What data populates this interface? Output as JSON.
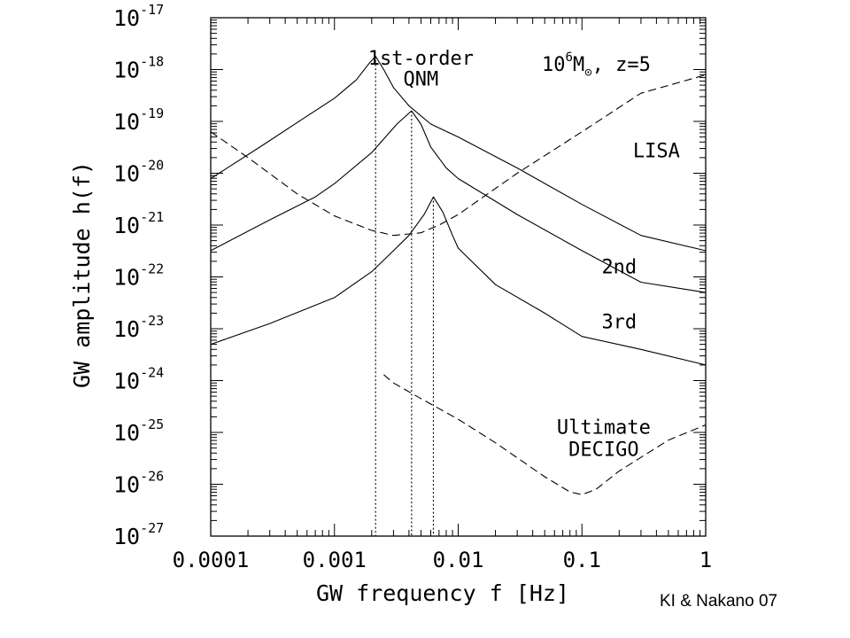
{
  "chart_data": {
    "type": "line",
    "xlabel": "GW frequency f [Hz]",
    "ylabel": "GW amplitude h(f)",
    "xscale": "log",
    "yscale": "log",
    "xlim": [
      0.0001,
      1
    ],
    "ylim": [
      1e-27,
      1e-17
    ],
    "x_ticks": [
      {
        "value": 0.0001,
        "label": "0.0001"
      },
      {
        "value": 0.001,
        "label": "0.001"
      },
      {
        "value": 0.01,
        "label": "0.01"
      },
      {
        "value": 0.1,
        "label": "0.1"
      },
      {
        "value": 1,
        "label": "1"
      }
    ],
    "y_ticks": [
      {
        "value": 1e-17,
        "exp": "-17"
      },
      {
        "value": 1e-18,
        "exp": "-18"
      },
      {
        "value": 1e-19,
        "exp": "-19"
      },
      {
        "value": 1e-20,
        "exp": "-20"
      },
      {
        "value": 1e-21,
        "exp": "-21"
      },
      {
        "value": 1e-22,
        "exp": "-22"
      },
      {
        "value": 1e-23,
        "exp": "-23"
      },
      {
        "value": 1e-24,
        "exp": "-24"
      },
      {
        "value": 1e-25,
        "exp": "-25"
      },
      {
        "value": 1e-26,
        "exp": "-26"
      },
      {
        "value": 1e-27,
        "exp": "-27"
      }
    ],
    "tick_base": "10",
    "series": [
      {
        "style": "solid",
        "points": [
          [
            0.0001,
            7.9e-21
          ],
          [
            0.00025,
            3.2e-20
          ],
          [
            0.0006,
            1.26e-19
          ],
          [
            0.001,
            2.8e-19
          ],
          [
            0.0015,
            6.3e-19
          ],
          [
            0.0019,
            1.3e-18
          ],
          [
            0.00215,
            1.8e-18
          ],
          [
            0.0025,
            1e-18
          ],
          [
            0.003,
            4.5e-19
          ],
          [
            0.004,
            2e-19
          ],
          [
            0.006,
            8.9e-20
          ],
          [
            0.01,
            5e-20
          ],
          [
            0.03,
            1.26e-20
          ],
          [
            0.1,
            2.5e-21
          ],
          [
            0.3,
            6.3e-22
          ],
          [
            1,
            3.2e-22
          ]
        ]
      },
      {
        "style": "solid",
        "points": [
          [
            0.0001,
            3.2e-22
          ],
          [
            0.0003,
            1.26e-21
          ],
          [
            0.0007,
            3.5e-21
          ],
          [
            0.001,
            6.3e-21
          ],
          [
            0.002,
            2.5e-20
          ],
          [
            0.0032,
            8.9e-20
          ],
          [
            0.0042,
            1.6e-19
          ],
          [
            0.005,
            8.9e-20
          ],
          [
            0.006,
            3.2e-20
          ],
          [
            0.008,
            1.26e-20
          ],
          [
            0.01,
            7.9e-21
          ],
          [
            0.03,
            1.6e-21
          ],
          [
            0.1,
            3.2e-22
          ],
          [
            0.3,
            7.9e-23
          ],
          [
            1,
            5e-23
          ]
        ]
      },
      {
        "style": "solid",
        "points": [
          [
            0.0001,
            5e-24
          ],
          [
            0.0003,
            1.26e-23
          ],
          [
            0.001,
            4e-23
          ],
          [
            0.002,
            1.26e-22
          ],
          [
            0.003,
            3.2e-22
          ],
          [
            0.004,
            6.3e-22
          ],
          [
            0.0053,
            1.6e-21
          ],
          [
            0.0063,
            3.5e-21
          ],
          [
            0.0075,
            1.8e-21
          ],
          [
            0.009,
            6.3e-22
          ],
          [
            0.01,
            3.6e-22
          ],
          [
            0.02,
            7.1e-23
          ],
          [
            0.05,
            2e-23
          ],
          [
            0.1,
            7.1e-24
          ],
          [
            0.3,
            4e-24
          ],
          [
            1,
            2e-24
          ]
        ]
      },
      {
        "name": "LISA",
        "style": "dashed",
        "points": [
          [
            0.0001,
            6.3e-20
          ],
          [
            0.0002,
            2e-20
          ],
          [
            0.0005,
            4e-21
          ],
          [
            0.001,
            1.5e-21
          ],
          [
            0.002,
            7.9e-22
          ],
          [
            0.003,
            6.3e-22
          ],
          [
            0.005,
            7.1e-22
          ],
          [
            0.007,
            1e-21
          ],
          [
            0.01,
            1.6e-21
          ],
          [
            0.03,
            1e-20
          ],
          [
            0.1,
            6.3e-20
          ],
          [
            0.3,
            3.5e-19
          ],
          [
            1,
            7.9e-19
          ]
        ]
      },
      {
        "name": "Ultimate DECIGO",
        "style": "dashed",
        "points": [
          [
            0.0025,
            1.3e-24
          ],
          [
            0.003,
            9e-25
          ],
          [
            0.005,
            4.5e-25
          ],
          [
            0.01,
            1.8e-25
          ],
          [
            0.02,
            6.3e-26
          ],
          [
            0.05,
            1.4e-26
          ],
          [
            0.08,
            7.1e-27
          ],
          [
            0.1,
            6.3e-27
          ],
          [
            0.13,
            8e-27
          ],
          [
            0.2,
            1.8e-26
          ],
          [
            0.5,
            7.1e-26
          ],
          [
            1,
            1.4e-25
          ]
        ]
      }
    ],
    "peak_markers": [
      {
        "x": 0.00215,
        "y": 1.8e-18
      },
      {
        "x": 0.0042,
        "y": 1.6e-19
      },
      {
        "x": 0.0063,
        "y": 3.5e-21
      }
    ],
    "annotations": [
      {
        "text": "1st-order",
        "x": 0.005,
        "y": 1.7e-18
      },
      {
        "text": "QNM",
        "x": 0.005,
        "y": 6.7e-19
      },
      {
        "text": "LISA",
        "x": 0.4,
        "y": 2.8e-20
      },
      {
        "text": "2nd",
        "x": 0.2,
        "y": 1.6e-22
      },
      {
        "text": "3rd",
        "x": 0.2,
        "y": 1.4e-23
      },
      {
        "text": "Ultimate",
        "x": 0.15,
        "y": 1.3e-25
      },
      {
        "text": "DECIGO",
        "x": 0.15,
        "y": 4.8e-26
      }
    ],
    "mass_label": {
      "base": "10",
      "exp": "6",
      "unit": "M",
      "sub": "⊙",
      "rest": ", z=5"
    },
    "grid": false
  },
  "credit": "KI & Nakano 07"
}
